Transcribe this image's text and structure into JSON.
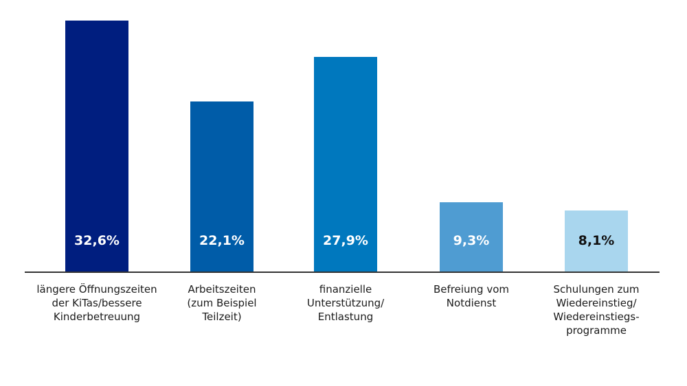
{
  "chart_data": {
    "type": "bar",
    "title": "",
    "xlabel": "",
    "ylabel": "",
    "grid": false,
    "legend": "none",
    "categories": [
      "längere Öffnungszeiten\nder KiTas/bessere\nKinderbetreuung",
      "Arbeitszeiten\n(zum Beispiel\nTeilzeit)",
      "finanzielle\nUnterstützung/\nEntlastung",
      "Befreiung vom\nNotdienst",
      "Schulungen zum\nWiedereinstieg/\nWiedereinstiegs-\nprogramme"
    ],
    "values": [
      32.6,
      22.1,
      27.9,
      9.3,
      8.1
    ],
    "value_labels": [
      "32,6%",
      "22,1%",
      "27,9%",
      "9,3%",
      "8,1%"
    ],
    "bar_colors": [
      "#001e7f",
      "#005ca8",
      "#0078be",
      "#4f9cd2",
      "#a9d6ee"
    ],
    "label_colors": [
      "#ffffff",
      "#ffffff",
      "#ffffff",
      "#ffffff",
      "#111111"
    ],
    "axis_color": "#333333"
  }
}
